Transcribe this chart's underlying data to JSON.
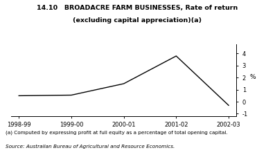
{
  "title_line1": "14.10   BROADACRE FARM BUSINESSES, Rate of return",
  "title_line2": "(excluding capital appreciation)(a)",
  "x_labels": [
    "1998-99",
    "1999-00",
    "2000-01",
    "2001-02",
    "2002-03"
  ],
  "x_values": [
    0,
    1,
    2,
    3,
    4
  ],
  "y_values": [
    0.5,
    0.55,
    1.5,
    3.8,
    -0.3
  ],
  "y_label": "%",
  "ylim": [
    -1.2,
    4.8
  ],
  "yticks": [
    -1,
    0,
    1,
    2,
    3,
    4
  ],
  "line_color": "#000000",
  "line_width": 1.0,
  "footnote1": "(a) Computed by expressing profit at full equity as a percentage of total opening capital.",
  "footnote2": "Source: Australian Bureau of Agricultural and Resource Economics.",
  "bg_color": "#ffffff"
}
